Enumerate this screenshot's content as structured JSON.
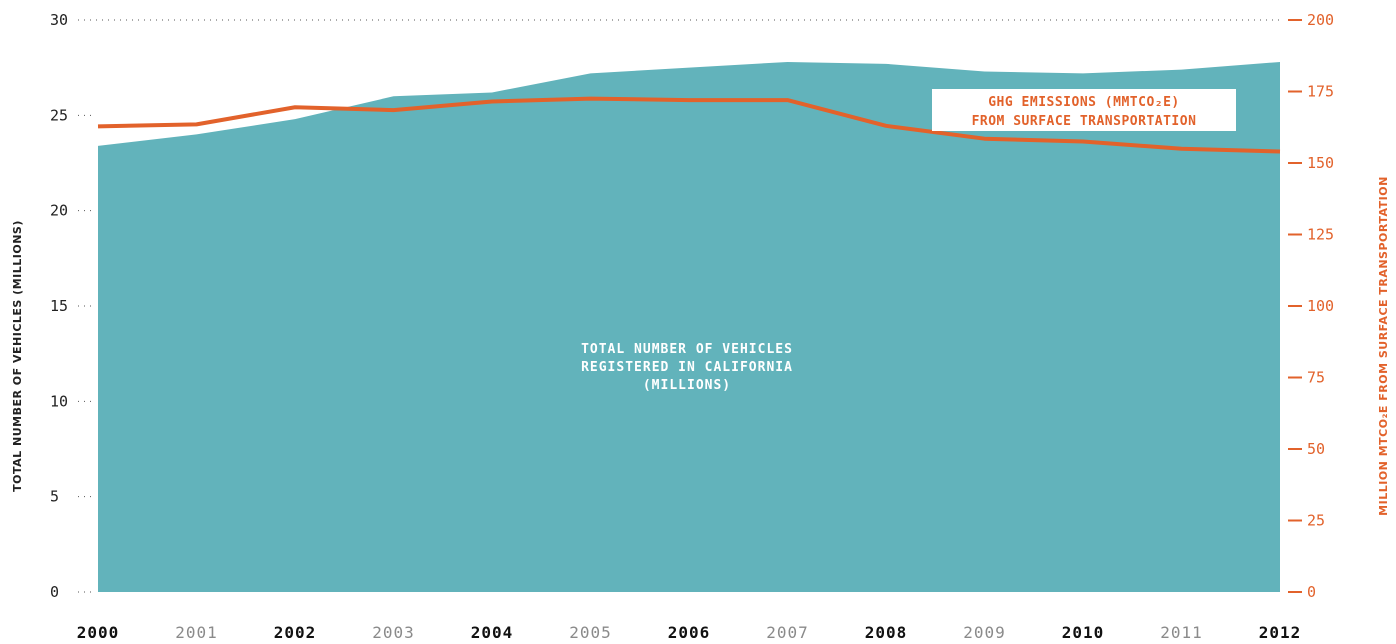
{
  "colors": {
    "area": "#62b3bb",
    "line": "#e2622b",
    "left_text": "#222222",
    "x_bold": "#111111",
    "x_light": "#8a8a8a"
  },
  "chart_data": {
    "type": "area",
    "x": [
      "2000",
      "2001",
      "2002",
      "2003",
      "2004",
      "2005",
      "2006",
      "2007",
      "2008",
      "2009",
      "2010",
      "2011",
      "2012"
    ],
    "x_tick_style": [
      "bold",
      "light",
      "bold",
      "light",
      "bold",
      "light",
      "bold",
      "light",
      "bold",
      "light",
      "bold",
      "light",
      "bold"
    ],
    "ylabel_left": "TOTAL NUMBER OF VEHICLES (MILLIONS)",
    "ylabel_right": "MILLION MTCO₂E FROM SURFACE TRANSPORTATION",
    "ylim_left": [
      0,
      30
    ],
    "yticks_left": [
      "0",
      "5",
      "10",
      "15",
      "20",
      "25",
      "30"
    ],
    "ylim_right": [
      0,
      200
    ],
    "yticks_right": [
      "0",
      "25",
      "50",
      "75",
      "100",
      "125",
      "150",
      "175",
      "200"
    ],
    "series": [
      {
        "name": "TOTAL NUMBER OF VEHICLES REGISTERED IN CALIFORNIA (MILLIONS)",
        "label_lines": [
          "TOTAL NUMBER OF VEHICLES",
          "REGISTERED IN CALIFORNIA",
          "(MILLIONS)"
        ],
        "type": "area",
        "axis": "left",
        "values": [
          23.4,
          24.0,
          24.8,
          26.0,
          26.2,
          27.2,
          27.5,
          27.8,
          27.7,
          27.3,
          27.2,
          27.4,
          27.8
        ]
      },
      {
        "name": "GHG EMISSIONS (MMTCO₂E) FROM SURFACE TRANSPORTATION",
        "label_lines": [
          "GHG EMISSIONS (MMTCO₂E)",
          "FROM SURFACE TRANSPORTATION"
        ],
        "type": "line",
        "axis": "right",
        "values": [
          162.8,
          163.5,
          169.5,
          168.5,
          171.5,
          172.5,
          172,
          172,
          163,
          158.5,
          157.5,
          155,
          154
        ]
      }
    ],
    "grid": false
  }
}
